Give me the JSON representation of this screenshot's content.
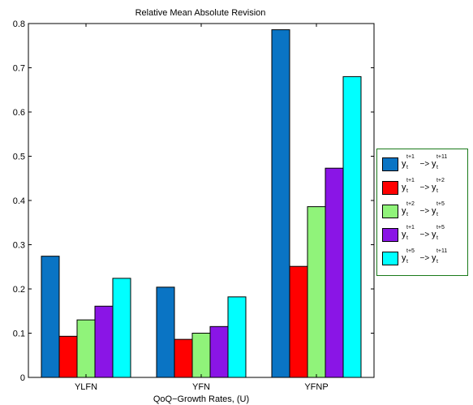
{
  "chart_data": {
    "type": "bar",
    "title": "Relative Mean Absolute Revision",
    "xlabel": "QoQ−Growth Rates, (U)",
    "ylabel": "",
    "categories": [
      "YLFN",
      "YFN",
      "YFNP"
    ],
    "ylim": [
      0,
      0.8
    ],
    "yticks": [
      "0",
      "0.1",
      "0.2",
      "0.3",
      "0.4",
      "0.5",
      "0.6",
      "0.7",
      "0.8"
    ],
    "grid": false,
    "legend_position": "right",
    "series": [
      {
        "name": "y_t^{t+1} -> y_t^{t+11}",
        "sup_from": "t+1",
        "sup_to": "t+11",
        "color": "#0a74c4",
        "values": [
          0.274,
          0.204,
          0.786
        ]
      },
      {
        "name": "y_t^{t+1} -> y_t^{t+2}",
        "sup_from": "t+1",
        "sup_to": "t+2",
        "color": "#ff0000",
        "values": [
          0.093,
          0.086,
          0.251
        ]
      },
      {
        "name": "y_t^{t+2} -> y_t^{t+5}",
        "sup_from": "t+2",
        "sup_to": "t+5",
        "color": "#90f37a",
        "values": [
          0.13,
          0.1,
          0.386
        ]
      },
      {
        "name": "y_t^{t+1} -> y_t^{t+5}",
        "sup_from": "t+1",
        "sup_to": "t+5",
        "color": "#8a15e6",
        "values": [
          0.161,
          0.115,
          0.473
        ]
      },
      {
        "name": "y_t^{t+5} -> y_t^{t+11}",
        "sup_from": "t+5",
        "sup_to": "t+11",
        "color": "#00ffff",
        "values": [
          0.224,
          0.182,
          0.68
        ]
      }
    ]
  }
}
